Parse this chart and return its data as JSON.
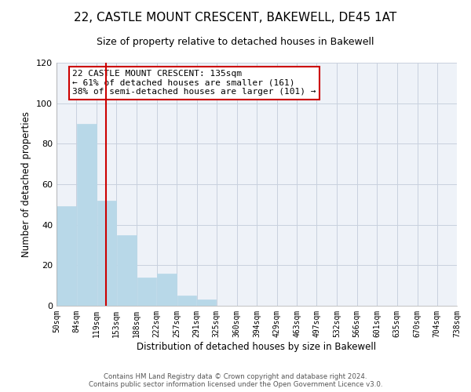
{
  "title": "22, CASTLE MOUNT CRESCENT, BAKEWELL, DE45 1AT",
  "subtitle": "Size of property relative to detached houses in Bakewell",
  "xlabel": "Distribution of detached houses by size in Bakewell",
  "ylabel": "Number of detached properties",
  "bar_edges": [
    50,
    84,
    119,
    153,
    188,
    222,
    257,
    291,
    325,
    360,
    394,
    429,
    463,
    497,
    532,
    566,
    601,
    635,
    670,
    704,
    738
  ],
  "bar_heights": [
    49,
    90,
    52,
    35,
    14,
    16,
    5,
    3,
    0,
    0,
    0,
    0,
    0,
    0,
    0,
    0,
    0,
    0,
    0,
    0
  ],
  "bar_color": "#b8d8e8",
  "vline_x": 135,
  "vline_color": "#cc0000",
  "ylim": [
    0,
    120
  ],
  "yticks": [
    0,
    20,
    40,
    60,
    80,
    100,
    120
  ],
  "xtick_labels": [
    "50sqm",
    "84sqm",
    "119sqm",
    "153sqm",
    "188sqm",
    "222sqm",
    "257sqm",
    "291sqm",
    "325sqm",
    "360sqm",
    "394sqm",
    "429sqm",
    "463sqm",
    "497sqm",
    "532sqm",
    "566sqm",
    "601sqm",
    "635sqm",
    "670sqm",
    "704sqm",
    "738sqm"
  ],
  "annotation_line1": "22 CASTLE MOUNT CRESCENT: 135sqm",
  "annotation_line2": "← 61% of detached houses are smaller (161)",
  "annotation_line3": "38% of semi-detached houses are larger (101) →",
  "footer_line1": "Contains HM Land Registry data © Crown copyright and database right 2024.",
  "footer_line2": "Contains public sector information licensed under the Open Government Licence v3.0.",
  "bg_color": "#eef2f8",
  "grid_color": "#c8d0de",
  "title_fontsize": 11,
  "subtitle_fontsize": 9,
  "axis_label_fontsize": 8.5,
  "tick_fontsize": 7,
  "annotation_fontsize": 8
}
